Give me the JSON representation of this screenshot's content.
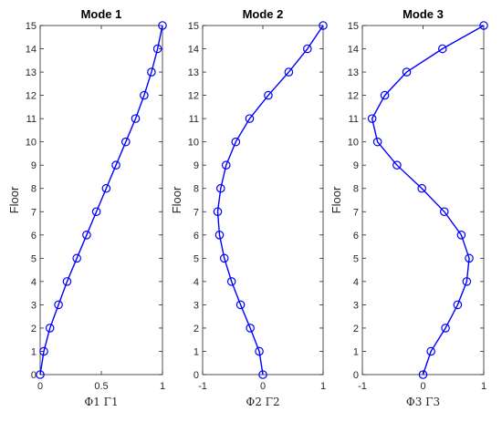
{
  "chart_data": [
    {
      "type": "line",
      "title": "Mode 1",
      "xlabel": "Φ1 Γ1",
      "ylabel": "Floor",
      "xlim": [
        0,
        1
      ],
      "ylim": [
        0,
        15
      ],
      "xticks": [
        "0",
        "0.5",
        "1"
      ],
      "xtick_values": [
        0,
        0.5,
        1
      ],
      "yticks": [
        "0",
        "1",
        "2",
        "3",
        "4",
        "5",
        "6",
        "7",
        "8",
        "9",
        "10",
        "11",
        "12",
        "13",
        "14",
        "15"
      ],
      "grid": false,
      "series": [
        {
          "color": "#0000ff",
          "marker": "circle",
          "x": [
            0.0,
            0.03,
            0.08,
            0.15,
            0.22,
            0.3,
            0.38,
            0.46,
            0.54,
            0.62,
            0.7,
            0.78,
            0.85,
            0.91,
            0.96,
            1.0
          ],
          "y": [
            0,
            1,
            2,
            3,
            4,
            5,
            6,
            7,
            8,
            9,
            10,
            11,
            12,
            13,
            14,
            15
          ]
        }
      ]
    },
    {
      "type": "line",
      "title": "Mode 2",
      "xlabel": "Φ2 Γ2",
      "ylabel": "Floor",
      "xlim": [
        -1,
        1
      ],
      "ylim": [
        0,
        15
      ],
      "xticks": [
        "-1",
        "0",
        "1"
      ],
      "xtick_values": [
        -1,
        0,
        1
      ],
      "yticks": [
        "0",
        "1",
        "2",
        "3",
        "4",
        "5",
        "6",
        "7",
        "8",
        "9",
        "10",
        "11",
        "12",
        "13",
        "14",
        "15"
      ],
      "grid": false,
      "series": [
        {
          "color": "#0000ff",
          "marker": "circle",
          "x": [
            0.0,
            -0.06,
            -0.21,
            -0.37,
            -0.52,
            -0.64,
            -0.72,
            -0.75,
            -0.7,
            -0.61,
            -0.45,
            -0.22,
            0.09,
            0.43,
            0.74,
            1.0
          ],
          "y": [
            0,
            1,
            2,
            3,
            4,
            5,
            6,
            7,
            8,
            9,
            10,
            11,
            12,
            13,
            14,
            15
          ]
        }
      ]
    },
    {
      "type": "line",
      "title": "Mode 3",
      "xlabel": "Φ3 Γ3",
      "ylabel": "Floor",
      "xlim": [
        -1,
        1
      ],
      "ylim": [
        0,
        15
      ],
      "xticks": [
        "-1",
        "0",
        "1"
      ],
      "xtick_values": [
        -1,
        0,
        1
      ],
      "yticks": [
        "0",
        "1",
        "2",
        "3",
        "4",
        "5",
        "6",
        "7",
        "8",
        "9",
        "10",
        "11",
        "12",
        "13",
        "14",
        "15"
      ],
      "grid": false,
      "series": [
        {
          "color": "#0000ff",
          "marker": "circle",
          "x": [
            0.0,
            0.13,
            0.37,
            0.57,
            0.72,
            0.76,
            0.63,
            0.35,
            -0.02,
            -0.43,
            -0.75,
            -0.84,
            -0.63,
            -0.27,
            0.32,
            1.0
          ],
          "y": [
            0,
            1,
            2,
            3,
            4,
            5,
            6,
            7,
            8,
            9,
            10,
            11,
            12,
            13,
            14,
            15
          ]
        }
      ]
    }
  ]
}
